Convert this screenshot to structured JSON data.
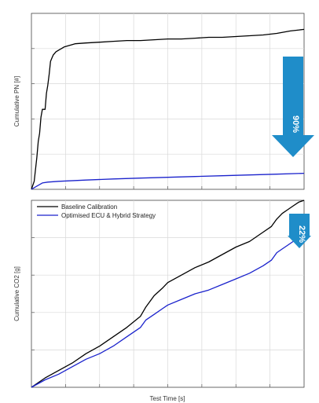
{
  "chart_data": [
    {
      "type": "line",
      "ylabel": "Cumulative PN [#]",
      "xlabel": "",
      "grid": true,
      "xlim": [
        0,
        1
      ],
      "ylim": [
        0,
        1.1
      ],
      "annotation": {
        "text": "90%",
        "color": "#1f8dc9",
        "direction": "down"
      },
      "series": [
        {
          "name": "Baseline Calibration",
          "color": "#000000",
          "x": [
            0,
            0.01,
            0.02,
            0.025,
            0.03,
            0.035,
            0.04,
            0.05,
            0.055,
            0.06,
            0.065,
            0.07,
            0.075,
            0.08,
            0.085,
            0.09,
            0.1,
            0.11,
            0.12,
            0.14,
            0.16,
            0.2,
            0.25,
            0.3,
            0.35,
            0.4,
            0.45,
            0.5,
            0.55,
            0.6,
            0.65,
            0.7,
            0.75,
            0.8,
            0.85,
            0.9,
            0.95,
            1.0
          ],
          "y": [
            0,
            0.05,
            0.2,
            0.3,
            0.35,
            0.45,
            0.5,
            0.5,
            0.6,
            0.65,
            0.72,
            0.8,
            0.82,
            0.84,
            0.85,
            0.86,
            0.87,
            0.88,
            0.89,
            0.9,
            0.91,
            0.915,
            0.92,
            0.925,
            0.93,
            0.93,
            0.935,
            0.94,
            0.94,
            0.945,
            0.95,
            0.95,
            0.955,
            0.96,
            0.965,
            0.975,
            0.99,
            1.0
          ]
        },
        {
          "name": "Optimised ECU & Hybrid Strategy",
          "color": "#1a22cc",
          "x": [
            0,
            0.02,
            0.04,
            0.06,
            0.1,
            0.2,
            0.3,
            0.4,
            0.5,
            0.6,
            0.7,
            0.8,
            0.9,
            1.0
          ],
          "y": [
            0,
            0.02,
            0.04,
            0.045,
            0.05,
            0.058,
            0.065,
            0.07,
            0.075,
            0.08,
            0.085,
            0.09,
            0.095,
            0.1
          ]
        }
      ]
    },
    {
      "type": "line",
      "ylabel": "Cumulative CO2 [g]",
      "xlabel": "Test Time [s]",
      "grid": true,
      "legend": "top-left",
      "xlim": [
        0,
        1
      ],
      "ylim": [
        0,
        1
      ],
      "annotation": {
        "text": "22%",
        "color": "#1f8dc9",
        "direction": "down"
      },
      "series": [
        {
          "name": "Baseline Calibration",
          "color": "#000000",
          "x": [
            0,
            0.05,
            0.1,
            0.15,
            0.2,
            0.25,
            0.3,
            0.35,
            0.4,
            0.42,
            0.45,
            0.48,
            0.5,
            0.55,
            0.6,
            0.65,
            0.7,
            0.75,
            0.8,
            0.85,
            0.88,
            0.9,
            0.92,
            0.94,
            0.96,
            0.98,
            1.0
          ],
          "y": [
            0,
            0.05,
            0.09,
            0.13,
            0.18,
            0.22,
            0.27,
            0.32,
            0.38,
            0.43,
            0.49,
            0.53,
            0.56,
            0.6,
            0.64,
            0.67,
            0.71,
            0.75,
            0.78,
            0.83,
            0.86,
            0.9,
            0.93,
            0.95,
            0.97,
            0.99,
            1.0
          ]
        },
        {
          "name": "Optimised ECU & Hybrid Strategy",
          "color": "#1a22cc",
          "x": [
            0,
            0.05,
            0.1,
            0.15,
            0.2,
            0.25,
            0.3,
            0.35,
            0.4,
            0.42,
            0.45,
            0.48,
            0.5,
            0.55,
            0.6,
            0.65,
            0.7,
            0.75,
            0.8,
            0.85,
            0.88,
            0.9,
            0.92,
            0.94,
            0.96,
            0.98,
            1.0
          ],
          "y": [
            0,
            0.04,
            0.07,
            0.11,
            0.15,
            0.18,
            0.22,
            0.27,
            0.32,
            0.36,
            0.39,
            0.42,
            0.44,
            0.47,
            0.5,
            0.52,
            0.55,
            0.58,
            0.61,
            0.65,
            0.68,
            0.72,
            0.74,
            0.76,
            0.78,
            0.8,
            0.81
          ]
        }
      ]
    }
  ]
}
